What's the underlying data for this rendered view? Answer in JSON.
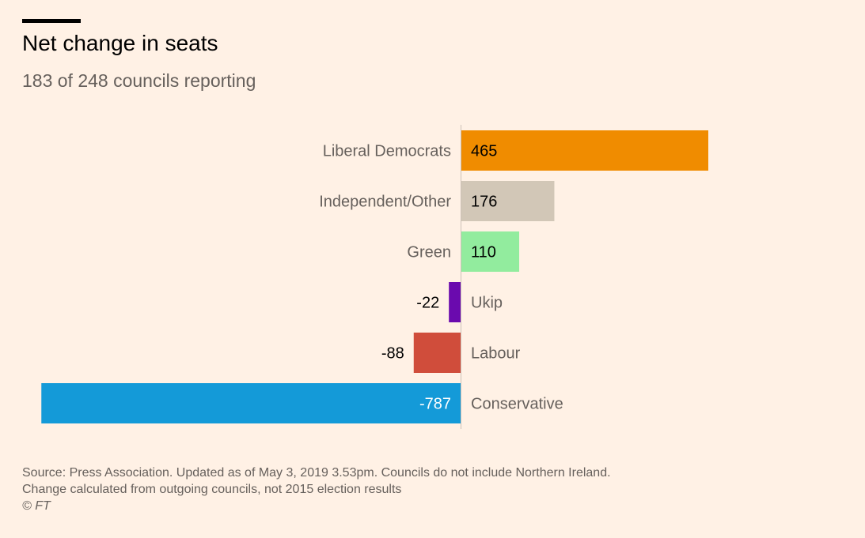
{
  "header": {
    "title": "Net change in seats",
    "subtitle": "183 of 248 councils reporting"
  },
  "chart_data": {
    "type": "bar",
    "orientation": "horizontal",
    "categories": [
      "Liberal Democrats",
      "Independent/Other",
      "Green",
      "Ukip",
      "Labour",
      "Conservative"
    ],
    "values": [
      465,
      176,
      110,
      -22,
      -88,
      -787
    ],
    "value_labels": [
      "465",
      "176",
      "110",
      "-22",
      "-88",
      "-787"
    ],
    "colors": [
      "#f08c00",
      "#d2c7b7",
      "#92ec9e",
      "#6a0aae",
      "#d04d3b",
      "#149ad8"
    ],
    "title": "Net change in seats",
    "subtitle": "183 of 248 councils reporting",
    "xlim": [
      -787,
      465
    ],
    "grid": false,
    "legend": "none"
  },
  "footer": {
    "source_line1": "Source: Press Association. Updated as of May 3, 2019 3.53pm. Councils do not include Northern Ireland.",
    "source_line2": "Change calculated from outgoing councils, not 2015 election results",
    "copyright": "© FT"
  }
}
